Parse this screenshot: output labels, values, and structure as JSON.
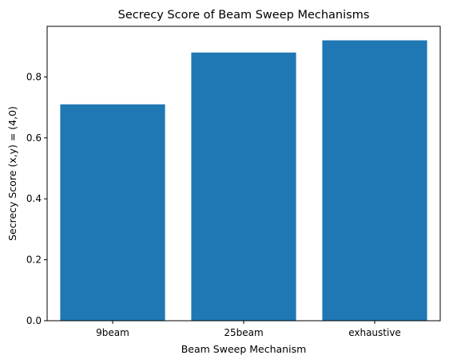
{
  "chart_data": {
    "type": "bar",
    "title": "Secrecy Score of Beam Sweep Mechanisms",
    "xlabel": "Beam Sweep Mechanism",
    "ylabel": "Secrecy Score (x,y) = (4,0)",
    "categories": [
      "9beam",
      "25beam",
      "exhaustive"
    ],
    "values": [
      0.71,
      0.88,
      0.92
    ],
    "ylim": [
      0,
      0.966
    ],
    "yticks": [
      0.0,
      0.2,
      0.4,
      0.6,
      0.8
    ],
    "ytick_labels": [
      "0.0",
      "0.2",
      "0.4",
      "0.6",
      "0.8"
    ],
    "bar_color": "#1f77b4",
    "grid": false,
    "legend": "none"
  }
}
